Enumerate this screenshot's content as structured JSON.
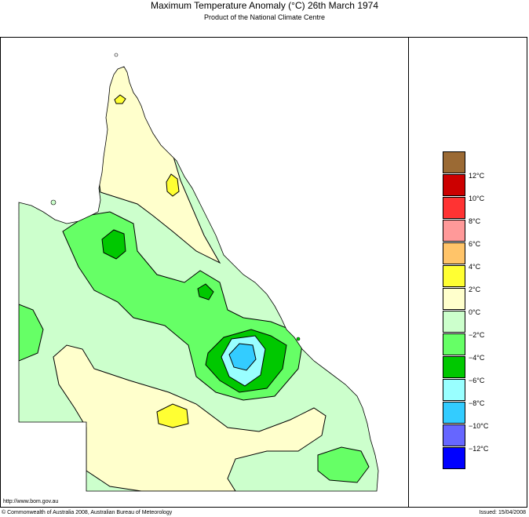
{
  "header": {
    "title": "Maximum Temperature Anomaly (°C)  26th March 1974",
    "subtitle": "Product of the National Climate Centre"
  },
  "legend": {
    "items": [
      {
        "label": "",
        "color": "#9b6a34"
      },
      {
        "label": "12°C",
        "color": "#cc0000"
      },
      {
        "label": "10°C",
        "color": "#ff3333"
      },
      {
        "label": "8°C",
        "color": "#ff9999"
      },
      {
        "label": "6°C",
        "color": "#ffc469"
      },
      {
        "label": "4°C",
        "color": "#ffff33"
      },
      {
        "label": "2°C",
        "color": "#ffffcc"
      },
      {
        "label": "0°C",
        "color": "#ccffcc"
      },
      {
        "label": "−2°C",
        "color": "#66ff66"
      },
      {
        "label": "−4°C",
        "color": "#00c800"
      },
      {
        "label": "−6°C",
        "color": "#99ffff"
      },
      {
        "label": "−8°C",
        "color": "#33ccff"
      },
      {
        "label": "−10°C",
        "color": "#6666ff"
      },
      {
        "label": "−12°C",
        "color": "#0000ff"
      }
    ]
  },
  "footer": {
    "url": "http://www.bom.gov.au",
    "copyright": "© Commonwealth of Australia 2008, Australian Bureau of Meteorology",
    "issued": "Issued: 15/04/2008"
  },
  "colors": {
    "plus0to2": "#ffffcc",
    "plus2to4": "#ffff33",
    "minus0to2": "#ccffcc",
    "minus2to4": "#66ff66",
    "minus4to6": "#00c800",
    "minus6to8": "#99ffff",
    "minus8to10": "#33ccff"
  }
}
